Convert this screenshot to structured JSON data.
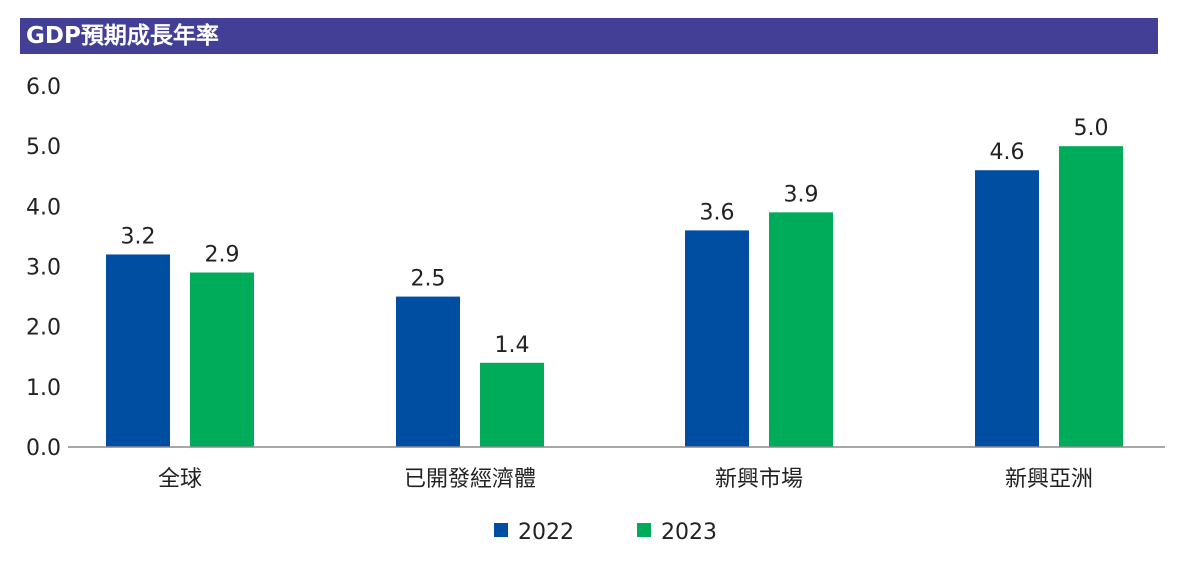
{
  "colors": {
    "title_bg": "#433f97",
    "series_2022": "#004ea2",
    "series_2023": "#00ac5a"
  },
  "chart_data": {
    "type": "bar",
    "title": "GDP預期成長年率",
    "categories": [
      "全球",
      "已開發經濟體",
      "新興市場",
      "新興亞洲"
    ],
    "series": [
      {
        "name": "2022",
        "values": [
          3.2,
          2.5,
          3.6,
          4.6
        ],
        "labels": [
          "3.2",
          "2.5",
          "3.6",
          "4.6"
        ]
      },
      {
        "name": "2023",
        "values": [
          2.9,
          1.4,
          3.9,
          5.0
        ],
        "labels": [
          "2.9",
          "1.4",
          "3.9",
          "5.0"
        ]
      }
    ],
    "ylim": [
      0,
      6
    ],
    "y_ticks": [
      "0.0",
      "1.0",
      "2.0",
      "3.0",
      "4.0",
      "5.0",
      "6.0"
    ],
    "grid": false,
    "legend": "bottom-center"
  }
}
